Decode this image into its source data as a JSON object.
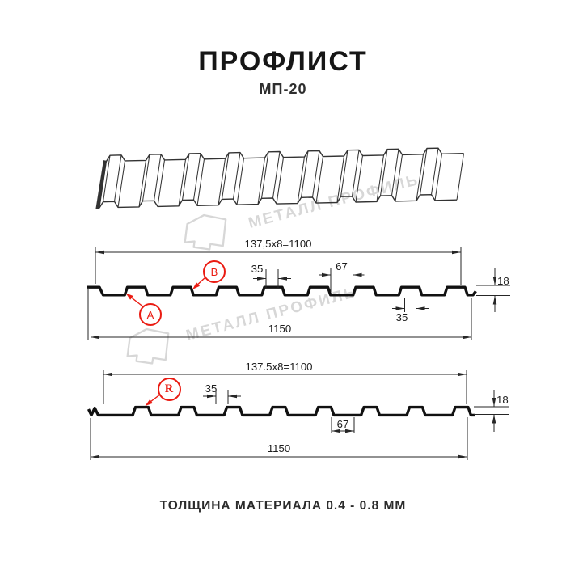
{
  "title": "ПРОФЛИСТ",
  "subtitle": "МП-20",
  "footer": "ТОЛЩИНА МАТЕРИАЛА 0.4 - 0.8 ММ",
  "watermark": {
    "text": "МЕТАЛЛ ПРОФИЛЬ"
  },
  "colors": {
    "ink": "#111111",
    "sketch": "#333333",
    "dim": "#262626",
    "red": "#ea1b12",
    "watermark": "#d7d7d7"
  },
  "sections": {
    "front": {
      "pitch_formula": "137,5x8=1100",
      "rib_top_width": "35",
      "rib_bottom_width": "67",
      "profile_height": "18",
      "bottom_gap": "35",
      "total_width": "1150",
      "label_a": "A",
      "label_b": "B"
    },
    "reverse": {
      "pitch_formula": "137.5x8=1100",
      "rib_top_width": "35",
      "rib_bottom_width": "67",
      "profile_height": "18",
      "total_width": "1150",
      "label_r": "R"
    }
  }
}
